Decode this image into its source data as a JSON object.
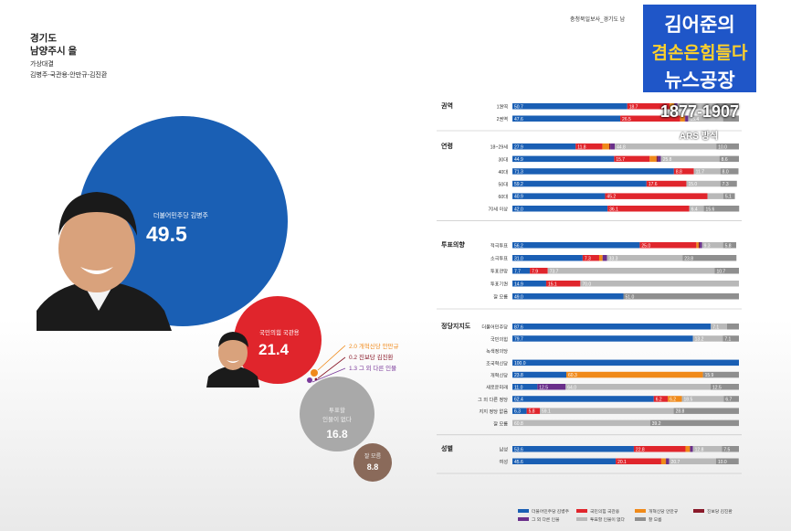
{
  "header": {
    "region_line1": "경기도",
    "region_line2": "남양주시 을",
    "matchup_label": "가상대결",
    "matchup_names": "김병주-국관용-안만규-김진환"
  },
  "source_text": "충청북일보사_경기도 남",
  "logo": {
    "line1": "김어준의",
    "line2": "겸손은힘들다",
    "line3": "뉴스공장",
    "range": "1877-1907",
    "method": "ARS 방식"
  },
  "bubbles": {
    "main": {
      "label": "더불어민주당 김병주",
      "value": "49.5",
      "color": "#1a5fb4"
    },
    "second": {
      "label": "국민의힘 국관용",
      "value": "21.4",
      "color": "#e0252c"
    },
    "undecided": {
      "label_line1": "투표할",
      "label_line2": "인물이 없다",
      "value": "16.8",
      "color": "#a9a9a9"
    },
    "dontknow": {
      "label": "잘 모름",
      "value": "8.8",
      "color": "#8a6a5a"
    }
  },
  "minor_candidates": [
    {
      "text": "2.0 개혁신당 안만규",
      "color": "#f08a1a"
    },
    {
      "text": "0.2 진보당 김진환",
      "color": "#8a1a2a"
    },
    {
      "text": "1.3 그 외 다른 인물",
      "color": "#7a3a9a"
    }
  ],
  "chart_data": {
    "type": "bar",
    "stacked": true,
    "orientation": "horizontal",
    "title": "경기도 남양주시 을 가상대결",
    "segment_order": [
      "더불어민주당 김병주",
      "국민의힘 국관용",
      "개혁신당 안만규",
      "진보당 김진환",
      "그 외 다른 인물",
      "투표할 인물이 없다",
      "잘 모름"
    ],
    "colors": [
      "#1a5fb4",
      "#e0252c",
      "#f08a1a",
      "#8a1a2a",
      "#6a2f8a",
      "#b9b9b9",
      "#8f8f8f"
    ],
    "legend": [
      {
        "name": "더불어민주당 김병주",
        "color": "#1a5fb4"
      },
      {
        "name": "국민의힘 국관용",
        "color": "#e0252c"
      },
      {
        "name": "개혁신당 안만규",
        "color": "#f08a1a"
      },
      {
        "name": "진보당 김진환",
        "color": "#8a1a2a"
      },
      {
        "name": "그 외 다른 인물",
        "color": "#6a2f8a"
      },
      {
        "name": "투표할 인물이 없다",
        "color": "#b9b9b9"
      },
      {
        "name": "잘 모름",
        "color": "#8f8f8f"
      }
    ],
    "groups": [
      {
        "name": "권역",
        "rows": [
          {
            "label": "1권역",
            "values": [
              50.7,
              18.7,
              2.0,
              0.2,
              1.3,
              17.1,
              10.0
            ],
            "labels": [
              "50.7",
              "18.7",
              "",
              "",
              "",
              "",
              ""
            ]
          },
          {
            "label": "2권역",
            "values": [
              47.6,
              26.5,
              2.0,
              0.2,
              1.3,
              15.4,
              7.0
            ],
            "labels": [
              "47.6",
              "26.5",
              "",
              "",
              "",
              "15.4",
              ""
            ]
          }
        ]
      },
      {
        "name": "연령",
        "rows": [
          {
            "label": "18~29세",
            "values": [
              27.9,
              11.8,
              3.0,
              0.5,
              2.0,
              44.8,
              10.0
            ],
            "labels": [
              "27.9",
              "11.8",
              "",
              "",
              "",
              "44.8",
              "10.0"
            ]
          },
          {
            "label": "30대",
            "values": [
              44.9,
              15.7,
              3.0,
              0.5,
              1.5,
              25.8,
              8.6
            ],
            "labels": [
              "44.9",
              "15.7",
              "",
              "",
              "",
              "25.8",
              "8.6"
            ]
          },
          {
            "label": "40대",
            "values": [
              71.3,
              8.8,
              0.0,
              0.0,
              0.0,
              11.7,
              8.0
            ],
            "labels": [
              "71.3",
              "8.8",
              "",
              "",
              "",
              "11.7",
              "8.0"
            ]
          },
          {
            "label": "50대",
            "values": [
              59.2,
              17.6,
              0.0,
              0.0,
              0.0,
              15.0,
              7.3
            ],
            "labels": [
              "59.2",
              "17.6",
              "",
              "",
              "",
              "15.0",
              "7.3"
            ]
          },
          {
            "label": "60대",
            "values": [
              40.9,
              45.2,
              0.0,
              0.0,
              0.0,
              7.0,
              5.1
            ],
            "labels": [
              "40.9",
              "45.2",
              "",
              "",
              "",
              "",
              "5.1"
            ]
          },
          {
            "label": "70세 이상",
            "values": [
              42.0,
              36.1,
              0.0,
              0.0,
              0.0,
              6.4,
              15.6
            ],
            "labels": [
              "42.0",
              "36.1",
              "",
              "",
              "",
              "6.4",
              "15.6"
            ]
          }
        ]
      },
      {
        "name": "투표의향",
        "rows": [
          {
            "label": "적극투표",
            "values": [
              56.2,
              25.0,
              1.0,
              0.5,
              1.0,
              9.3,
              5.8
            ],
            "labels": [
              "56.2",
              "25.0",
              "",
              "",
              "",
              "9.3",
              "5.8"
            ]
          },
          {
            "label": "소극투표",
            "values": [
              31.0,
              7.3,
              1.5,
              0.0,
              2.0,
              33.3,
              23.8
            ],
            "labels": [
              "31.0",
              "7.3",
              "",
              "",
              "",
              "33.3",
              "23.8"
            ]
          },
          {
            "label": "투표관망",
            "values": [
              7.7,
              7.9,
              0.0,
              0.0,
              0.0,
              73.7,
              10.7
            ],
            "labels": [
              "7.7",
              "7.9",
              "",
              "",
              "",
              "73.7",
              "10.7"
            ]
          },
          {
            "label": "투표기권",
            "values": [
              14.9,
              15.1,
              0.0,
              0.0,
              0.0,
              70.0,
              0.0
            ],
            "labels": [
              "14.9",
              "15.1",
              "",
              "",
              "",
              "70.0",
              ""
            ]
          },
          {
            "label": "잘 모름",
            "values": [
              49.0,
              0.0,
              0.0,
              0.0,
              0.0,
              0.0,
              51.0
            ],
            "labels": [
              "49.0",
              "",
              "",
              "",
              "",
              "",
              "51.0"
            ]
          }
        ]
      },
      {
        "name": "정당지지도",
        "rows": [
          {
            "label": "더불어민주당",
            "values": [
              87.6,
              0.0,
              0.0,
              0.0,
              0.0,
              7.1,
              5.3
            ],
            "labels": [
              "87.6",
              "",
              "",
              "",
              "",
              "7.1",
              ""
            ]
          },
          {
            "label": "국민의힘",
            "values": [
              79.7,
              0.0,
              0.0,
              0.0,
              0.0,
              13.2,
              7.1
            ],
            "labels": [
              "79.7",
              "",
              "",
              "",
              "",
              "13.2",
              "7.1"
            ]
          },
          {
            "label": "녹색정의당",
            "values": [
              0.0,
              0.0,
              0.0,
              0.0,
              0.0,
              0.0,
              0.0
            ],
            "labels": [
              "",
              "",
              "",
              "",
              "",
              "",
              ""
            ]
          },
          {
            "label": "조국혁신당",
            "values": [
              100.0,
              0.0,
              0.0,
              0.0,
              0.0,
              0.0,
              0.0
            ],
            "labels": [
              "100.0",
              "",
              "",
              "",
              "",
              "",
              ""
            ]
          },
          {
            "label": "개혁신당",
            "values": [
              23.8,
              0.0,
              60.3,
              0.0,
              0.0,
              0.0,
              15.9
            ],
            "labels": [
              "23.8",
              "",
              "60.3",
              "",
              "",
              "",
              "15.9"
            ]
          },
          {
            "label": "새로운미래",
            "values": [
              11.0,
              0.0,
              0.0,
              0.0,
              12.5,
              64.0,
              12.5
            ],
            "labels": [
              "11.0",
              "",
              "",
              "",
              "12.5",
              "64.0",
              "12.5"
            ]
          },
          {
            "label": "그 외 다른 정당",
            "values": [
              62.4,
              6.2,
              6.2,
              0.0,
              0.0,
              18.5,
              6.7
            ],
            "labels": [
              "62.4",
              "6.2",
              "6.2",
              "",
              "",
              "18.5",
              "6.7"
            ]
          },
          {
            "label": "지지 정당 없음",
            "values": [
              6.3,
              5.8,
              0.0,
              0.0,
              0.0,
              59.1,
              28.8
            ],
            "labels": [
              "6.3",
              "5.8",
              "",
              "",
              "",
              "59.1",
              "28.8"
            ]
          },
          {
            "label": "잘 모름",
            "values": [
              0.0,
              0.0,
              0.0,
              0.0,
              0.0,
              60.8,
              39.2
            ],
            "labels": [
              "",
              "",
              "",
              "",
              "",
              "60.8",
              "39.2"
            ]
          }
        ]
      },
      {
        "name": "성별",
        "rows": [
          {
            "label": "남성",
            "values": [
              53.6,
              22.8,
              2.0,
              0.0,
              1.3,
              12.8,
              7.5
            ],
            "labels": [
              "53.6",
              "22.8",
              "",
              "",
              "",
              "12.8",
              "7.5"
            ]
          },
          {
            "label": "여성",
            "values": [
              45.6,
              20.1,
              2.0,
              0.2,
              1.3,
              20.7,
              10.0
            ],
            "labels": [
              "45.6",
              "20.1",
              "",
              "",
              "",
              "20.7",
              "10.0"
            ]
          }
        ]
      }
    ]
  }
}
